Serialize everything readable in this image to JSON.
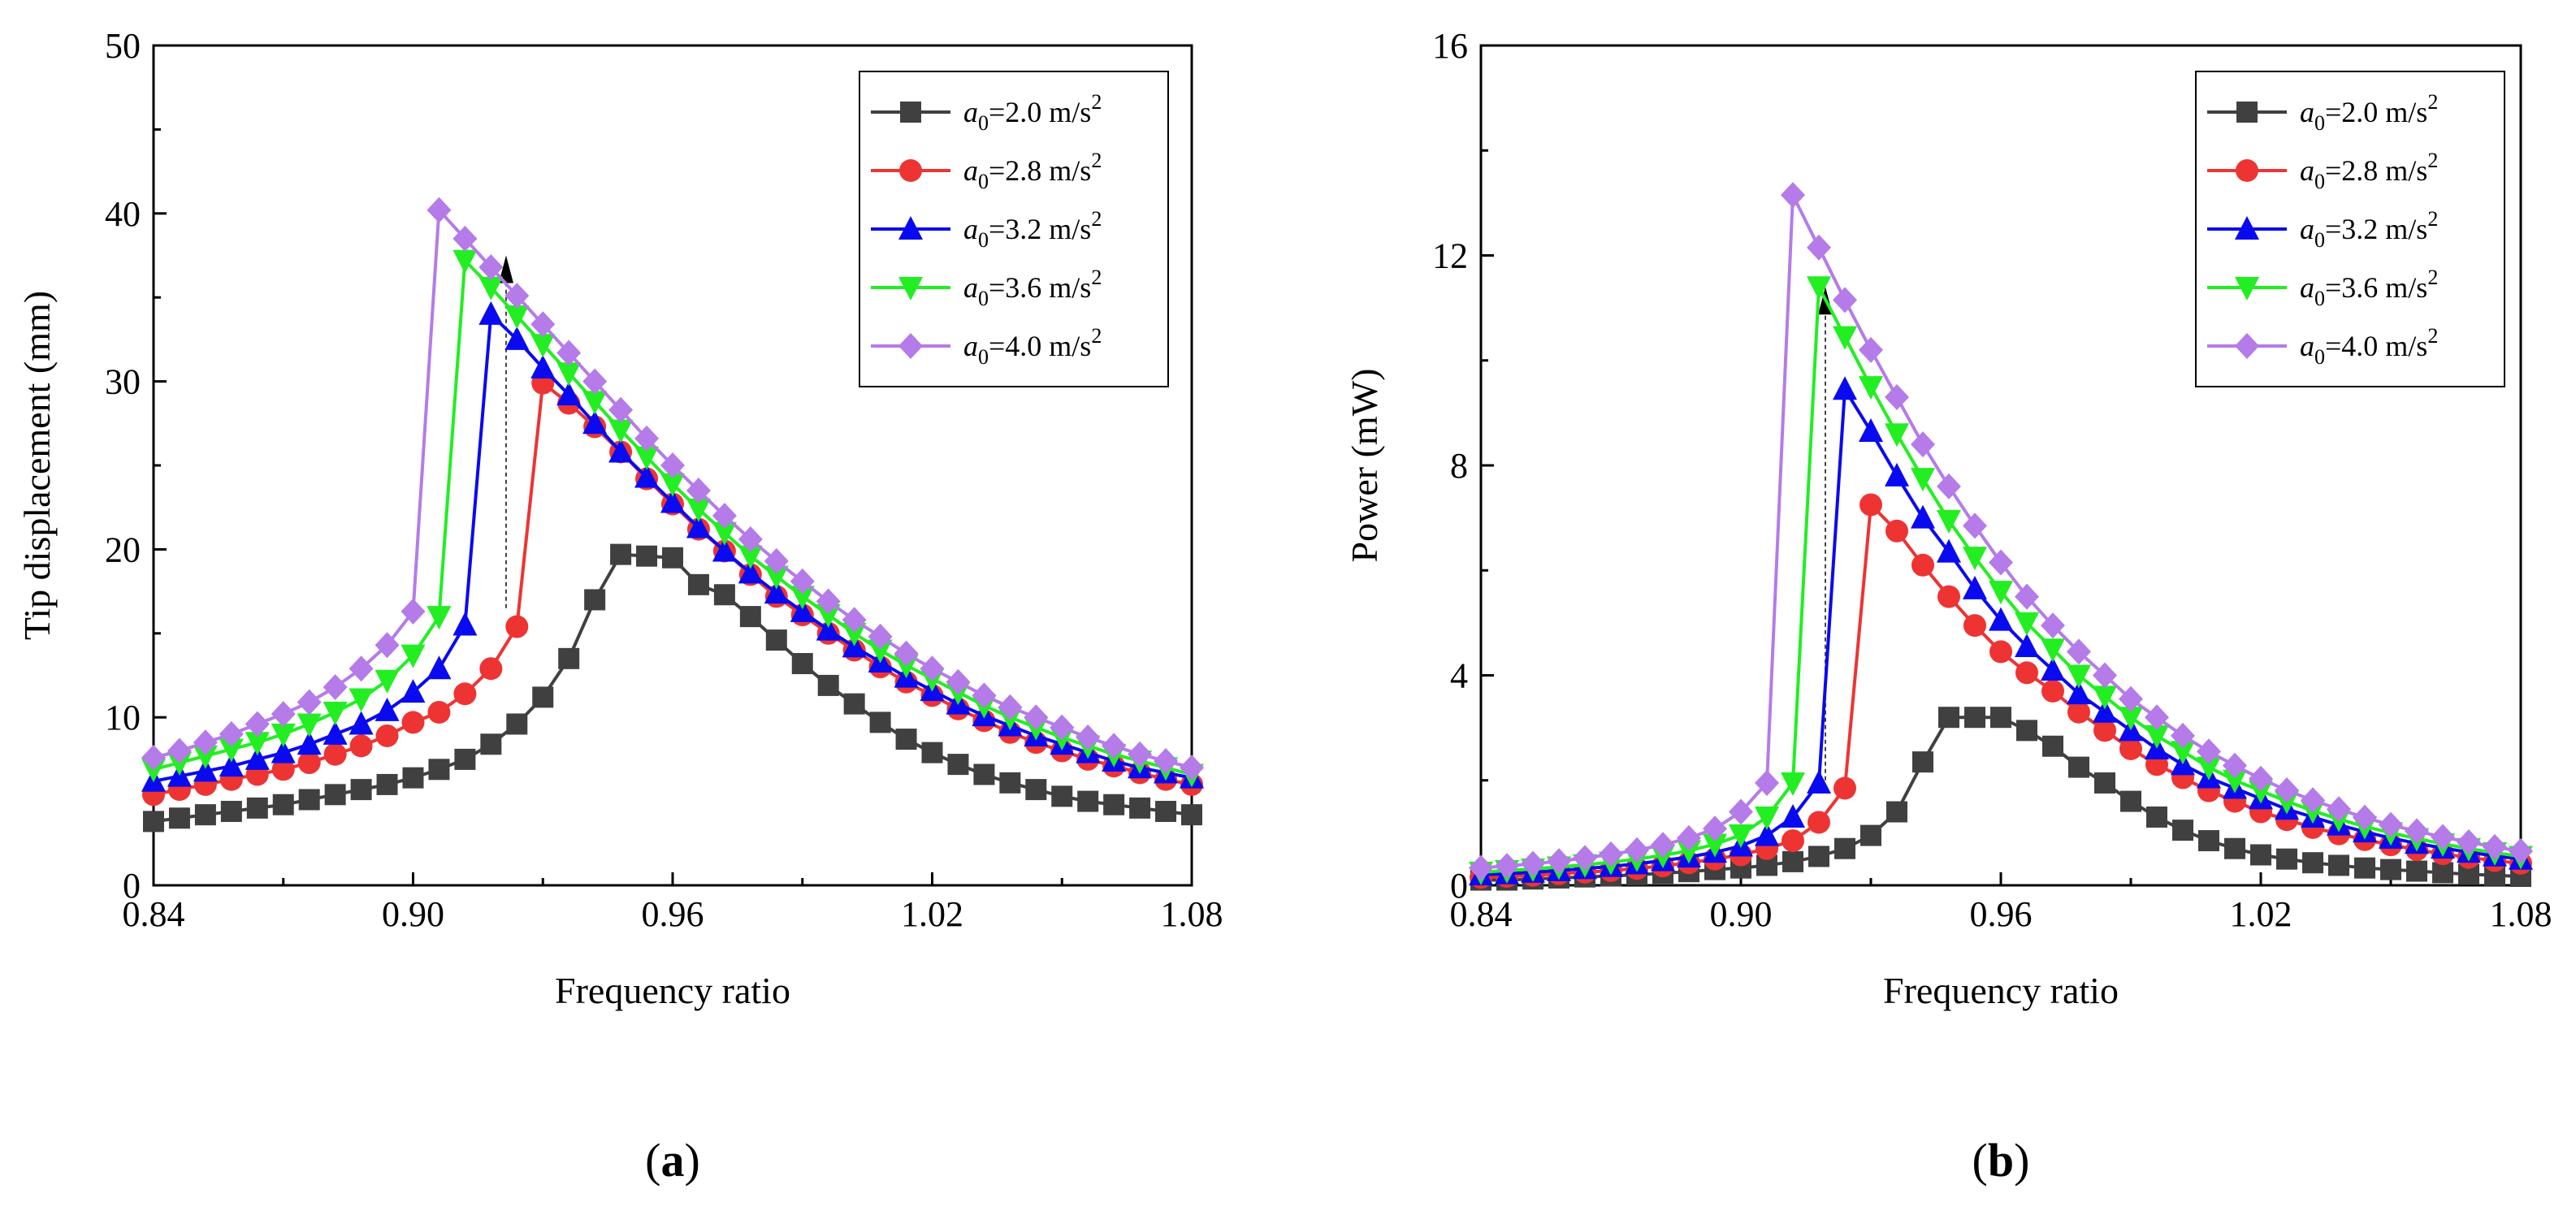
{
  "chart_data": [
    {
      "type": "line",
      "panel_label": "a",
      "xlabel": "Frequency ratio",
      "ylabel": "Tip displacement (mm)",
      "xlim": [
        0.84,
        1.08
      ],
      "ylim": [
        0,
        50
      ],
      "xticks": [
        "0.84",
        "0.90",
        "0.96",
        "1.02",
        "1.08"
      ],
      "yticks": [
        "0",
        "10",
        "20",
        "30",
        "40",
        "50"
      ],
      "legend_position": "top-right",
      "jump_arrow": {
        "x": 0.9215,
        "y_from": 16.5,
        "y_to": 37.5
      },
      "series": [
        {
          "name": "a0=2.0 m/s2",
          "sym": "a",
          "sub": "0",
          "eq": "=2.0 m/s",
          "sup": "2",
          "color": "#404040",
          "marker": "square",
          "x": [
            0.84,
            0.846,
            0.852,
            0.858,
            0.864,
            0.87,
            0.876,
            0.882,
            0.888,
            0.894,
            0.9,
            0.906,
            0.912,
            0.918,
            0.924,
            0.93,
            0.936,
            0.942,
            0.948,
            0.954,
            0.96,
            0.966,
            0.972,
            0.978,
            0.984,
            0.99,
            0.996,
            1.002,
            1.008,
            1.014,
            1.02,
            1.026,
            1.032,
            1.038,
            1.044,
            1.05,
            1.056,
            1.062,
            1.068,
            1.074,
            1.08
          ],
          "values": [
            3.8,
            4.0,
            4.2,
            4.4,
            4.6,
            4.8,
            5.1,
            5.4,
            5.7,
            6.0,
            6.4,
            6.9,
            7.5,
            8.4,
            9.6,
            11.2,
            13.5,
            17.0,
            19.7,
            19.6,
            19.5,
            17.9,
            17.3,
            16.0,
            14.6,
            13.2,
            11.9,
            10.8,
            9.7,
            8.7,
            7.9,
            7.2,
            6.6,
            6.1,
            5.7,
            5.3,
            5.0,
            4.8,
            4.6,
            4.4,
            4.2
          ]
        },
        {
          "name": "a0=2.8 m/s2",
          "sym": "a",
          "sub": "0",
          "eq": "=2.8 m/s",
          "sup": "2",
          "color": "#ee3333",
          "marker": "circle",
          "x": [
            0.84,
            0.846,
            0.852,
            0.858,
            0.864,
            0.87,
            0.876,
            0.882,
            0.888,
            0.894,
            0.9,
            0.906,
            0.912,
            0.918,
            0.924,
            0.93,
            0.936,
            0.942,
            0.948,
            0.954,
            0.96,
            0.966,
            0.972,
            0.978,
            0.984,
            0.99,
            0.996,
            1.002,
            1.008,
            1.014,
            1.02,
            1.026,
            1.032,
            1.038,
            1.044,
            1.05,
            1.056,
            1.062,
            1.068,
            1.074,
            1.08
          ],
          "values": [
            5.4,
            5.7,
            6.0,
            6.3,
            6.6,
            6.9,
            7.3,
            7.8,
            8.3,
            8.9,
            9.7,
            10.3,
            11.4,
            12.9,
            15.4,
            29.9,
            28.7,
            27.3,
            25.8,
            24.2,
            22.7,
            21.2,
            19.9,
            18.5,
            17.2,
            16.1,
            15.0,
            14.0,
            13.0,
            12.1,
            11.3,
            10.5,
            9.8,
            9.1,
            8.5,
            8.0,
            7.5,
            7.1,
            6.7,
            6.3,
            6.0
          ]
        },
        {
          "name": "a0=3.2 m/s2",
          "sym": "a",
          "sub": "0",
          "eq": "=3.2 m/s",
          "sup": "2",
          "color": "#0a0af0",
          "marker": "triangle-up",
          "x": [
            0.84,
            0.846,
            0.852,
            0.858,
            0.864,
            0.87,
            0.876,
            0.882,
            0.888,
            0.894,
            0.9,
            0.906,
            0.912,
            0.918,
            0.924,
            0.93,
            0.936,
            0.942,
            0.948,
            0.954,
            0.96,
            0.966,
            0.972,
            0.978,
            0.984,
            0.99,
            0.996,
            1.002,
            1.008,
            1.014,
            1.02,
            1.026,
            1.032,
            1.038,
            1.044,
            1.05,
            1.056,
            1.062,
            1.068,
            1.074,
            1.08
          ],
          "values": [
            6.2,
            6.5,
            6.8,
            7.1,
            7.5,
            7.9,
            8.4,
            9.0,
            9.6,
            10.4,
            11.5,
            12.9,
            15.5,
            34.0,
            32.5,
            30.8,
            29.2,
            27.5,
            25.8,
            24.3,
            22.8,
            21.3,
            19.9,
            18.6,
            17.4,
            16.3,
            15.2,
            14.2,
            13.3,
            12.4,
            11.6,
            10.8,
            10.1,
            9.5,
            8.9,
            8.4,
            7.9,
            7.4,
            7.0,
            6.7,
            6.4
          ]
        },
        {
          "name": "a0=3.6 m/s2",
          "sym": "a",
          "sub": "0",
          "eq": "=3.6 m/s",
          "sup": "2",
          "color": "#22ee22",
          "marker": "triangle-down",
          "x": [
            0.84,
            0.846,
            0.852,
            0.858,
            0.864,
            0.87,
            0.876,
            0.882,
            0.888,
            0.894,
            0.9,
            0.906,
            0.912,
            0.918,
            0.924,
            0.93,
            0.936,
            0.942,
            0.948,
            0.954,
            0.96,
            0.966,
            0.972,
            0.978,
            0.984,
            0.99,
            0.996,
            1.002,
            1.008,
            1.014,
            1.02,
            1.026,
            1.032,
            1.038,
            1.044,
            1.05,
            1.056,
            1.062,
            1.068,
            1.074,
            1.08
          ],
          "values": [
            6.9,
            7.3,
            7.7,
            8.1,
            8.5,
            9.0,
            9.6,
            10.3,
            11.1,
            12.2,
            13.7,
            16.0,
            37.2,
            35.6,
            33.9,
            32.2,
            30.5,
            28.8,
            27.1,
            25.5,
            23.9,
            22.4,
            21.0,
            19.6,
            18.4,
            17.2,
            16.1,
            15.0,
            14.0,
            13.1,
            12.3,
            11.5,
            10.7,
            10.0,
            9.4,
            8.8,
            8.3,
            7.8,
            7.4,
            7.0,
            6.6
          ]
        },
        {
          "name": "a0=4.0 m/s2",
          "sym": "a",
          "sub": "0",
          "eq": "=4.0 m/s",
          "sup": "2",
          "color": "#b57be8",
          "marker": "diamond",
          "x": [
            0.84,
            0.846,
            0.852,
            0.858,
            0.864,
            0.87,
            0.876,
            0.882,
            0.888,
            0.894,
            0.9,
            0.906,
            0.912,
            0.918,
            0.924,
            0.93,
            0.936,
            0.942,
            0.948,
            0.954,
            0.96,
            0.966,
            0.972,
            0.978,
            0.984,
            0.99,
            0.996,
            1.002,
            1.008,
            1.014,
            1.02,
            1.026,
            1.032,
            1.038,
            1.044,
            1.05,
            1.056,
            1.062,
            1.068,
            1.074,
            1.08
          ],
          "values": [
            7.6,
            8.0,
            8.5,
            9.0,
            9.6,
            10.2,
            10.9,
            11.8,
            12.9,
            14.3,
            16.3,
            40.2,
            38.5,
            36.8,
            35.1,
            33.4,
            31.7,
            30.0,
            28.3,
            26.6,
            25.0,
            23.5,
            22.0,
            20.6,
            19.3,
            18.1,
            16.9,
            15.8,
            14.8,
            13.8,
            12.9,
            12.1,
            11.3,
            10.6,
            10.0,
            9.4,
            8.8,
            8.3,
            7.8,
            7.4,
            7.0
          ]
        }
      ]
    },
    {
      "type": "line",
      "panel_label": "b",
      "xlabel": "Frequency ratio",
      "ylabel": "Power (mW)",
      "xlim": [
        0.84,
        1.08
      ],
      "ylim": [
        0,
        16
      ],
      "xticks": [
        "0.84",
        "0.90",
        "0.96",
        "1.02",
        "1.08"
      ],
      "yticks": [
        "0",
        "4",
        "8",
        "12",
        "16"
      ],
      "legend_position": "top-right",
      "jump_arrow": {
        "x": 0.9195,
        "y_from": 2.0,
        "y_to": 11.4
      },
      "series": [
        {
          "name": "a0=2.0 m/s2",
          "sym": "a",
          "sub": "0",
          "eq": "=2.0 m/s",
          "sup": "2",
          "color": "#404040",
          "marker": "square",
          "x": [
            0.84,
            0.846,
            0.852,
            0.858,
            0.864,
            0.87,
            0.876,
            0.882,
            0.888,
            0.894,
            0.9,
            0.906,
            0.912,
            0.918,
            0.924,
            0.93,
            0.936,
            0.942,
            0.948,
            0.954,
            0.96,
            0.966,
            0.972,
            0.978,
            0.984,
            0.99,
            0.996,
            1.002,
            1.008,
            1.014,
            1.02,
            1.026,
            1.032,
            1.038,
            1.044,
            1.05,
            1.056,
            1.062,
            1.068,
            1.074,
            1.08
          ],
          "values": [
            0.1,
            0.1,
            0.12,
            0.14,
            0.16,
            0.18,
            0.2,
            0.23,
            0.26,
            0.3,
            0.33,
            0.38,
            0.45,
            0.55,
            0.7,
            0.95,
            1.4,
            2.35,
            3.2,
            3.2,
            3.2,
            2.95,
            2.65,
            2.25,
            1.95,
            1.6,
            1.3,
            1.05,
            0.85,
            0.7,
            0.58,
            0.5,
            0.43,
            0.38,
            0.33,
            0.3,
            0.27,
            0.24,
            0.21,
            0.19,
            0.17
          ]
        },
        {
          "name": "a0=2.8 m/s2",
          "sym": "a",
          "sub": "0",
          "eq": "=2.8 m/s",
          "sup": "2",
          "color": "#ee3333",
          "marker": "circle",
          "x": [
            0.84,
            0.846,
            0.852,
            0.858,
            0.864,
            0.87,
            0.876,
            0.882,
            0.888,
            0.894,
            0.9,
            0.906,
            0.912,
            0.918,
            0.924,
            0.93,
            0.936,
            0.942,
            0.948,
            0.954,
            0.96,
            0.966,
            0.972,
            0.978,
            0.984,
            0.99,
            0.996,
            1.002,
            1.008,
            1.014,
            1.02,
            1.026,
            1.032,
            1.038,
            1.044,
            1.05,
            1.056,
            1.062,
            1.068,
            1.074,
            1.08
          ],
          "values": [
            0.15,
            0.17,
            0.19,
            0.22,
            0.25,
            0.28,
            0.32,
            0.37,
            0.43,
            0.5,
            0.58,
            0.7,
            0.85,
            1.2,
            1.85,
            7.25,
            6.75,
            6.1,
            5.5,
            4.95,
            4.45,
            4.05,
            3.7,
            3.3,
            2.95,
            2.6,
            2.3,
            2.05,
            1.8,
            1.6,
            1.4,
            1.25,
            1.1,
            0.98,
            0.87,
            0.77,
            0.68,
            0.6,
            0.53,
            0.47,
            0.42
          ]
        },
        {
          "name": "a0=3.2 m/s2",
          "sym": "a",
          "sub": "0",
          "eq": "=3.2 m/s",
          "sup": "2",
          "color": "#0a0af0",
          "marker": "triangle-up",
          "x": [
            0.84,
            0.846,
            0.852,
            0.858,
            0.864,
            0.87,
            0.876,
            0.882,
            0.888,
            0.894,
            0.9,
            0.906,
            0.912,
            0.918,
            0.924,
            0.93,
            0.936,
            0.942,
            0.948,
            0.954,
            0.96,
            0.966,
            0.972,
            0.978,
            0.984,
            0.99,
            0.996,
            1.002,
            1.008,
            1.014,
            1.02,
            1.026,
            1.032,
            1.038,
            1.044,
            1.05,
            1.056,
            1.062,
            1.068,
            1.074,
            1.08
          ],
          "values": [
            0.2,
            0.22,
            0.25,
            0.28,
            0.32,
            0.36,
            0.41,
            0.47,
            0.54,
            0.63,
            0.75,
            0.95,
            1.3,
            1.95,
            9.45,
            8.65,
            7.8,
            7.0,
            6.35,
            5.65,
            5.05,
            4.55,
            4.1,
            3.65,
            3.3,
            2.95,
            2.6,
            2.3,
            2.05,
            1.85,
            1.65,
            1.45,
            1.3,
            1.15,
            1.02,
            0.9,
            0.8,
            0.71,
            0.63,
            0.56,
            0.5
          ]
        },
        {
          "name": "a0=3.6 m/s2",
          "sym": "a",
          "sub": "0",
          "eq": "=3.6 m/s",
          "sup": "2",
          "color": "#22ee22",
          "marker": "triangle-down",
          "x": [
            0.84,
            0.846,
            0.852,
            0.858,
            0.864,
            0.87,
            0.876,
            0.882,
            0.888,
            0.894,
            0.9,
            0.906,
            0.912,
            0.918,
            0.924,
            0.93,
            0.936,
            0.942,
            0.948,
            0.954,
            0.96,
            0.966,
            0.972,
            0.978,
            0.984,
            0.99,
            0.996,
            1.002,
            1.008,
            1.014,
            1.02,
            1.026,
            1.032,
            1.038,
            1.044,
            1.05,
            1.056,
            1.062,
            1.068,
            1.074,
            1.08
          ],
          "values": [
            0.25,
            0.28,
            0.31,
            0.35,
            0.39,
            0.44,
            0.5,
            0.57,
            0.66,
            0.78,
            0.96,
            1.3,
            1.95,
            11.4,
            10.45,
            9.5,
            8.6,
            7.75,
            6.95,
            6.25,
            5.6,
            5.0,
            4.5,
            4.0,
            3.6,
            3.2,
            2.85,
            2.55,
            2.25,
            2.0,
            1.8,
            1.6,
            1.42,
            1.26,
            1.12,
            1.0,
            0.89,
            0.79,
            0.7,
            0.62,
            0.55
          ]
        },
        {
          "name": "a0=4.0 m/s2",
          "sym": "a",
          "sub": "0",
          "eq": "=4.0 m/s",
          "sup": "2",
          "color": "#b57be8",
          "marker": "diamond",
          "x": [
            0.84,
            0.846,
            0.852,
            0.858,
            0.864,
            0.87,
            0.876,
            0.882,
            0.888,
            0.894,
            0.9,
            0.906,
            0.912,
            0.918,
            0.924,
            0.93,
            0.936,
            0.942,
            0.948,
            0.954,
            0.96,
            0.966,
            0.972,
            0.978,
            0.984,
            0.99,
            0.996,
            1.002,
            1.008,
            1.014,
            1.02,
            1.026,
            1.032,
            1.038,
            1.044,
            1.05,
            1.056,
            1.062,
            1.068,
            1.074,
            1.08
          ],
          "values": [
            0.33,
            0.37,
            0.41,
            0.46,
            0.52,
            0.59,
            0.67,
            0.77,
            0.9,
            1.08,
            1.4,
            1.95,
            13.15,
            12.15,
            11.15,
            10.2,
            9.3,
            8.4,
            7.6,
            6.85,
            6.15,
            5.5,
            4.95,
            4.45,
            4.0,
            3.55,
            3.2,
            2.85,
            2.55,
            2.28,
            2.03,
            1.81,
            1.62,
            1.45,
            1.29,
            1.15,
            1.03,
            0.92,
            0.82,
            0.73,
            0.65
          ]
        }
      ]
    }
  ]
}
